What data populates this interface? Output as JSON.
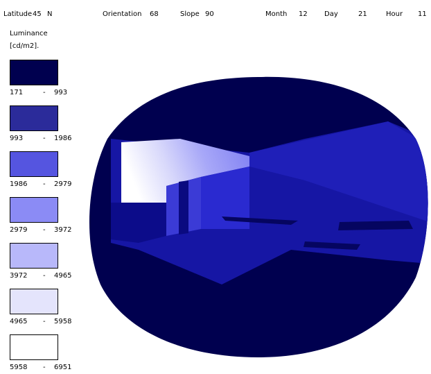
{
  "header": {
    "fields": [
      {
        "label": "Latitude",
        "value": 45,
        "unit": "N"
      },
      {
        "label": "Orientation",
        "value": 68
      },
      {
        "label": "Slope",
        "value": 90
      },
      {
        "label": "Month",
        "value": 12
      },
      {
        "label": "Day",
        "value": 21
      },
      {
        "label": "Hour",
        "value": 11
      }
    ]
  },
  "legend": {
    "title": "Luminance",
    "unit": "[cd/m2].",
    "separator": "-",
    "items": [
      {
        "from": 171,
        "to": 993,
        "color": "#00004f"
      },
      {
        "from": 993,
        "to": 1986,
        "color": "#2b2b9a"
      },
      {
        "from": 1986,
        "to": 2979,
        "color": "#5555e0"
      },
      {
        "from": 2979,
        "to": 3972,
        "color": "#8b8bf5"
      },
      {
        "from": 3972,
        "to": 4965,
        "color": "#b8b8fa"
      },
      {
        "from": 4965,
        "to": 5958,
        "color": "#e4e4fc"
      },
      {
        "from": 5958,
        "to": 6951,
        "color": "#ffffff"
      }
    ]
  }
}
